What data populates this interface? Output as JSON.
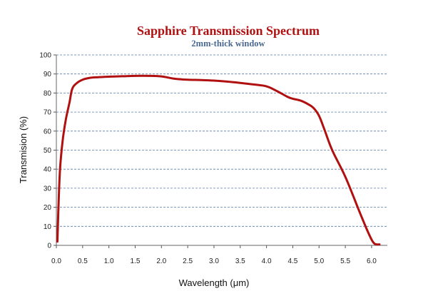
{
  "chart_data": {
    "type": "line",
    "title": "Sapphire Transmission Spectrum",
    "subtitle": "2mm-thick window",
    "xlabel": "Wavelength (μm)",
    "ylabel": "Transmision (%)",
    "xlim": [
      0.0,
      6.3
    ],
    "ylim": [
      0,
      100
    ],
    "x_ticks": [
      0.0,
      0.5,
      1.0,
      1.5,
      2.0,
      2.5,
      3.0,
      3.5,
      4.0,
      4.5,
      5.0,
      5.5,
      6.0
    ],
    "x_tick_labels": [
      "0.0",
      "0.5",
      "1.0",
      "1.5",
      "2.0",
      "2.5",
      "3.0",
      "3.5",
      "4.0",
      "4.5",
      "5.0",
      "5.5",
      "6.0"
    ],
    "y_ticks": [
      0,
      10,
      20,
      30,
      40,
      50,
      60,
      70,
      80,
      90,
      100
    ],
    "y_tick_labels": [
      "0",
      "10",
      "20",
      "30",
      "40",
      "50",
      "60",
      "70",
      "80",
      "90",
      "100"
    ],
    "grid": "horizontal",
    "legend": "none",
    "series": [
      {
        "color": "#b01010",
        "x": [
          0.02,
          0.04,
          0.07,
          0.12,
          0.18,
          0.25,
          0.3,
          0.38,
          0.5,
          0.65,
          0.8,
          1.0,
          1.25,
          1.5,
          1.75,
          2.0,
          2.25,
          2.5,
          2.75,
          3.0,
          3.25,
          3.5,
          3.75,
          4.0,
          4.2,
          4.4,
          4.5,
          4.65,
          4.8,
          4.9,
          5.0,
          5.1,
          5.25,
          5.5,
          5.75,
          5.9,
          6.0,
          6.05,
          6.1,
          6.15
        ],
        "y": [
          2,
          20,
          40,
          55,
          66,
          75,
          82,
          85,
          87,
          88,
          88.3,
          88.6,
          88.8,
          89,
          89,
          88.7,
          87.5,
          87,
          86.8,
          86.5,
          86,
          85.3,
          84.5,
          83.5,
          81,
          78,
          77,
          76,
          74,
          72,
          68,
          61,
          50,
          36,
          19,
          9,
          3,
          1,
          0.5,
          0.5
        ]
      }
    ]
  }
}
